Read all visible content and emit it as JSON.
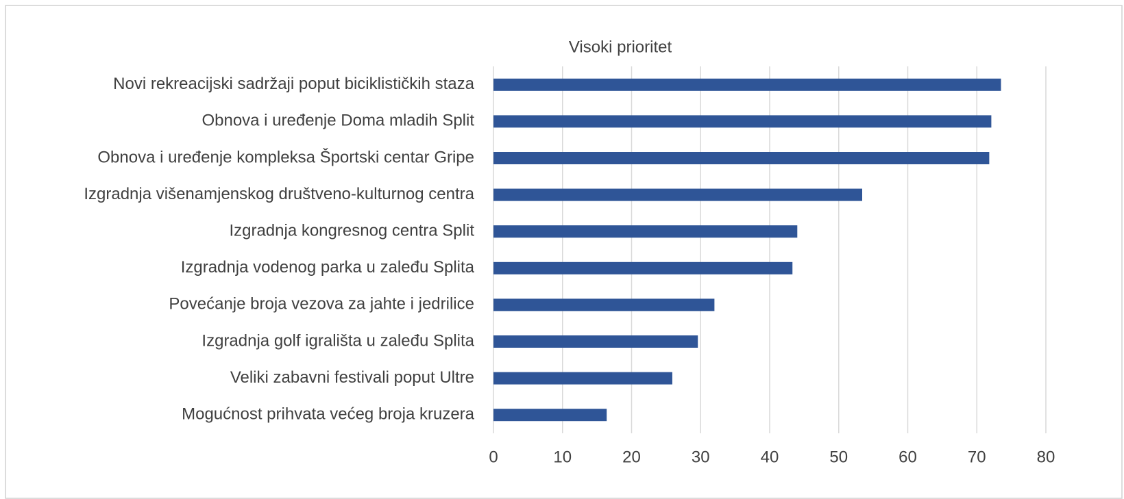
{
  "chart_data": {
    "type": "bar",
    "orientation": "horizontal",
    "title": "Visoki prioritet",
    "categories": [
      "Novi rekreacijski sadržaji poput biciklističkih staza",
      "Obnova i uređenje Doma mladih Split",
      "Obnova i uređenje kompleksa Športski centar Gripe",
      "Izgradnja višenamjenskog društveno-kulturnog centra",
      "Izgradnja kongresnog centra Split",
      "Izgradnja vodenog parka u zaleđu Splita",
      "Povećanje broja vezova za jahte i jedrilice",
      "Izgradnja golf igrališta u zaleđu Splita",
      "Veliki zabavni festivali poput Ultre",
      "Mogućnost prihvata većeg broja kruzera"
    ],
    "values": [
      73.5,
      72.1,
      71.8,
      53.4,
      44.0,
      43.3,
      32.0,
      29.6,
      25.9,
      16.4
    ],
    "color": "#2f5597",
    "xlim": [
      0,
      80
    ],
    "xticks": [
      0,
      10,
      20,
      30,
      40,
      50,
      60,
      70,
      80
    ],
    "grid": true
  }
}
